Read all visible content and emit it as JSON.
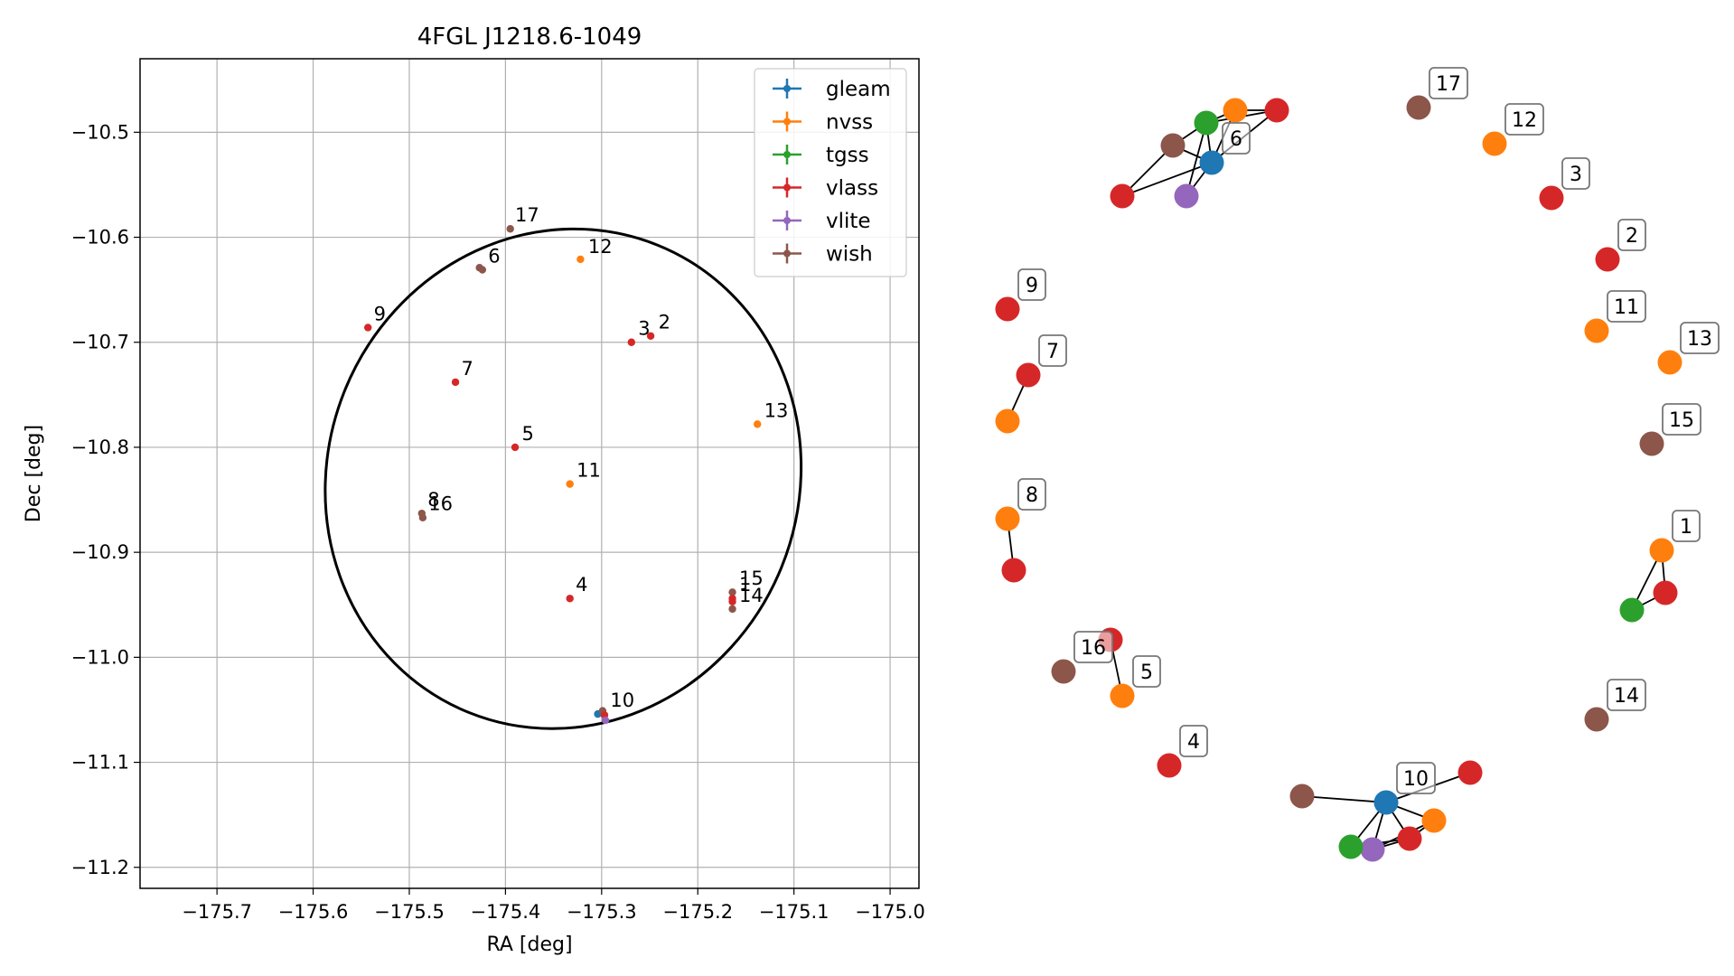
{
  "chart_data": [
    {
      "type": "scatter",
      "title": "4FGL J1218.6-1049",
      "xlabel": "RA [deg]",
      "ylabel": "Dec [deg]",
      "xlim": [
        -175.78,
        -174.97
      ],
      "ylim": [
        -11.22,
        -10.43
      ],
      "xticks": [
        -175.7,
        -175.6,
        -175.5,
        -175.4,
        -175.3,
        -175.2,
        -175.1,
        -175.0
      ],
      "xtick_labels": [
        "−175.7",
        "−175.6",
        "−175.5",
        "−175.4",
        "−175.3",
        "−175.2",
        "−175.1",
        "−175.0"
      ],
      "yticks": [
        -10.5,
        -10.6,
        -10.7,
        -10.8,
        -10.9,
        -11.0,
        -11.1,
        -11.2
      ],
      "ytick_labels": [
        "−10.5",
        "−10.6",
        "−10.7",
        "−10.8",
        "−10.9",
        "−11.0",
        "−11.1",
        "−11.2"
      ],
      "grid": true,
      "legend_position": "top-right",
      "colors": {
        "gleam": "#1f77b4",
        "nvss": "#ff7f0e",
        "tgss": "#2ca02c",
        "vlass": "#d62728",
        "vlite": "#9467bd",
        "wish": "#8c564b"
      },
      "legend": [
        "gleam",
        "nvss",
        "tgss",
        "vlass",
        "vlite",
        "wish"
      ],
      "ellipse": {
        "center": [
          -175.34,
          -10.83
        ],
        "semi_axis_ra": 0.245,
        "semi_axis_dec": 0.24,
        "angle_deg": 22
      },
      "points": [
        {
          "survey": "wish",
          "ra": -175.395,
          "dec": -10.592
        },
        {
          "survey": "nvss",
          "ra": -175.322,
          "dec": -10.621
        },
        {
          "survey": "wish",
          "ra": -175.424,
          "dec": -10.631
        },
        {
          "survey": "wish",
          "ra": -175.427,
          "dec": -10.629
        },
        {
          "survey": "vlass",
          "ra": -175.543,
          "dec": -10.686
        },
        {
          "survey": "vlass",
          "ra": -175.269,
          "dec": -10.7
        },
        {
          "survey": "vlass",
          "ra": -175.249,
          "dec": -10.694
        },
        {
          "survey": "vlass",
          "ra": -175.452,
          "dec": -10.738
        },
        {
          "survey": "nvss",
          "ra": -175.138,
          "dec": -10.778
        },
        {
          "survey": "vlass",
          "ra": -175.39,
          "dec": -10.8
        },
        {
          "survey": "nvss",
          "ra": -175.333,
          "dec": -10.835
        },
        {
          "survey": "wish",
          "ra": -175.487,
          "dec": -10.863
        },
        {
          "survey": "wish",
          "ra": -175.486,
          "dec": -10.867
        },
        {
          "survey": "vlass",
          "ra": -175.333,
          "dec": -10.944
        },
        {
          "survey": "wish",
          "ra": -175.164,
          "dec": -10.938
        },
        {
          "survey": "vlass",
          "ra": -175.164,
          "dec": -10.944
        },
        {
          "survey": "vlass",
          "ra": -175.164,
          "dec": -10.947
        },
        {
          "survey": "wish",
          "ra": -175.164,
          "dec": -10.954
        },
        {
          "survey": "gleam",
          "ra": -175.304,
          "dec": -11.054
        },
        {
          "survey": "wish",
          "ra": -175.299,
          "dec": -11.051
        },
        {
          "survey": "vlass",
          "ra": -175.297,
          "dec": -11.055
        },
        {
          "survey": "vlite",
          "ra": -175.296,
          "dec": -11.06
        }
      ],
      "labels": [
        {
          "text": "17",
          "ra": -175.39,
          "dec": -10.585
        },
        {
          "text": "12",
          "ra": -175.314,
          "dec": -10.615
        },
        {
          "text": "6",
          "ra": -175.418,
          "dec": -10.624
        },
        {
          "text": "9",
          "ra": -175.537,
          "dec": -10.679
        },
        {
          "text": "3",
          "ra": -175.262,
          "dec": -10.693
        },
        {
          "text": "2",
          "ra": -175.241,
          "dec": -10.687
        },
        {
          "text": "7",
          "ra": -175.446,
          "dec": -10.731
        },
        {
          "text": "13",
          "ra": -175.131,
          "dec": -10.771
        },
        {
          "text": "5",
          "ra": -175.383,
          "dec": -10.793
        },
        {
          "text": "11",
          "ra": -175.326,
          "dec": -10.828
        },
        {
          "text": "8",
          "ra": -175.481,
          "dec": -10.856
        },
        {
          "text": "16",
          "ra": -175.48,
          "dec": -10.86
        },
        {
          "text": "4",
          "ra": -175.327,
          "dec": -10.937
        },
        {
          "text": "15",
          "ra": -175.157,
          "dec": -10.931
        },
        {
          "text": "1",
          "ra": -175.157,
          "dec": -10.937
        },
        {
          "text": "14",
          "ra": -175.157,
          "dec": -10.947
        },
        {
          "text": "10",
          "ra": -175.291,
          "dec": -11.047
        }
      ]
    },
    {
      "type": "network-graph",
      "nodes": [
        {
          "id": "g1_nvss",
          "survey": "nvss",
          "label": "1"
        },
        {
          "id": "g1_tgss",
          "survey": "tgss"
        },
        {
          "id": "g1_vlass",
          "survey": "vlass"
        },
        {
          "id": "g2_vlass",
          "survey": "vlass",
          "label": "2"
        },
        {
          "id": "g3_vlass",
          "survey": "vlass",
          "label": "3"
        },
        {
          "id": "g4_vlass",
          "survey": "vlass",
          "label": "4"
        },
        {
          "id": "g5_vlass",
          "survey": "vlass"
        },
        {
          "id": "g5_nvss",
          "survey": "nvss",
          "label": "5"
        },
        {
          "id": "g6_gleam",
          "survey": "gleam",
          "label": "6"
        },
        {
          "id": "g6_tgss",
          "survey": "tgss"
        },
        {
          "id": "g6_nvss",
          "survey": "nvss"
        },
        {
          "id": "g6_vlass_a",
          "survey": "vlass"
        },
        {
          "id": "g6_wish",
          "survey": "wish"
        },
        {
          "id": "g6_vlass_b",
          "survey": "vlass"
        },
        {
          "id": "g6_vlite",
          "survey": "vlite"
        },
        {
          "id": "g7_vlass",
          "survey": "vlass",
          "label": "7"
        },
        {
          "id": "g7_nvss",
          "survey": "nvss"
        },
        {
          "id": "g8_nvss",
          "survey": "nvss",
          "label": "8"
        },
        {
          "id": "g8_vlass",
          "survey": "vlass"
        },
        {
          "id": "g9_vlass",
          "survey": "vlass",
          "label": "9"
        },
        {
          "id": "g10_gleam",
          "survey": "gleam",
          "label": "10"
        },
        {
          "id": "g10_wish",
          "survey": "wish"
        },
        {
          "id": "g10_vlass_a",
          "survey": "vlass"
        },
        {
          "id": "g10_nvss",
          "survey": "nvss"
        },
        {
          "id": "g10_vlass_b",
          "survey": "vlass"
        },
        {
          "id": "g10_vlite",
          "survey": "vlite"
        },
        {
          "id": "g10_tgss",
          "survey": "tgss"
        },
        {
          "id": "g11_nvss",
          "survey": "nvss",
          "label": "11"
        },
        {
          "id": "g12_nvss",
          "survey": "nvss",
          "label": "12"
        },
        {
          "id": "g13_nvss",
          "survey": "nvss",
          "label": "13"
        },
        {
          "id": "g14_wish",
          "survey": "wish",
          "label": "14"
        },
        {
          "id": "g15_wish",
          "survey": "wish",
          "label": "15"
        },
        {
          "id": "g16_wish",
          "survey": "wish",
          "label": "16"
        },
        {
          "id": "g17_wish",
          "survey": "wish",
          "label": "17"
        }
      ],
      "edges": [
        [
          "g1_nvss",
          "g1_tgss"
        ],
        [
          "g1_nvss",
          "g1_vlass"
        ],
        [
          "g1_tgss",
          "g1_vlass"
        ],
        [
          "g5_vlass",
          "g5_nvss"
        ],
        [
          "g6_gleam",
          "g6_tgss"
        ],
        [
          "g6_gleam",
          "g6_nvss"
        ],
        [
          "g6_gleam",
          "g6_vlass_a"
        ],
        [
          "g6_gleam",
          "g6_wish"
        ],
        [
          "g6_gleam",
          "g6_vlass_b"
        ],
        [
          "g6_gleam",
          "g6_vlite"
        ],
        [
          "g6_tgss",
          "g6_nvss"
        ],
        [
          "g6_tgss",
          "g6_wish"
        ],
        [
          "g6_tgss",
          "g6_vlass_a"
        ],
        [
          "g6_wish",
          "g6_vlass_b"
        ],
        [
          "g6_nvss",
          "g6_vlass_a"
        ],
        [
          "g6_tgss",
          "g6_vlite"
        ],
        [
          "g7_vlass",
          "g7_nvss"
        ],
        [
          "g8_nvss",
          "g8_vlass"
        ],
        [
          "g10_gleam",
          "g10_wish"
        ],
        [
          "g10_gleam",
          "g10_vlass_a"
        ],
        [
          "g10_gleam",
          "g10_nvss"
        ],
        [
          "g10_gleam",
          "g10_vlass_b"
        ],
        [
          "g10_gleam",
          "g10_vlite"
        ],
        [
          "g10_gleam",
          "g10_tgss"
        ],
        [
          "g10_vlass_b",
          "g10_nvss"
        ],
        [
          "g10_vlass_b",
          "g10_vlite"
        ],
        [
          "g10_vlass_b",
          "g10_tgss"
        ],
        [
          "g10_vlite",
          "g10_tgss"
        ],
        [
          "g10_nvss",
          "g10_vlite"
        ]
      ]
    }
  ]
}
